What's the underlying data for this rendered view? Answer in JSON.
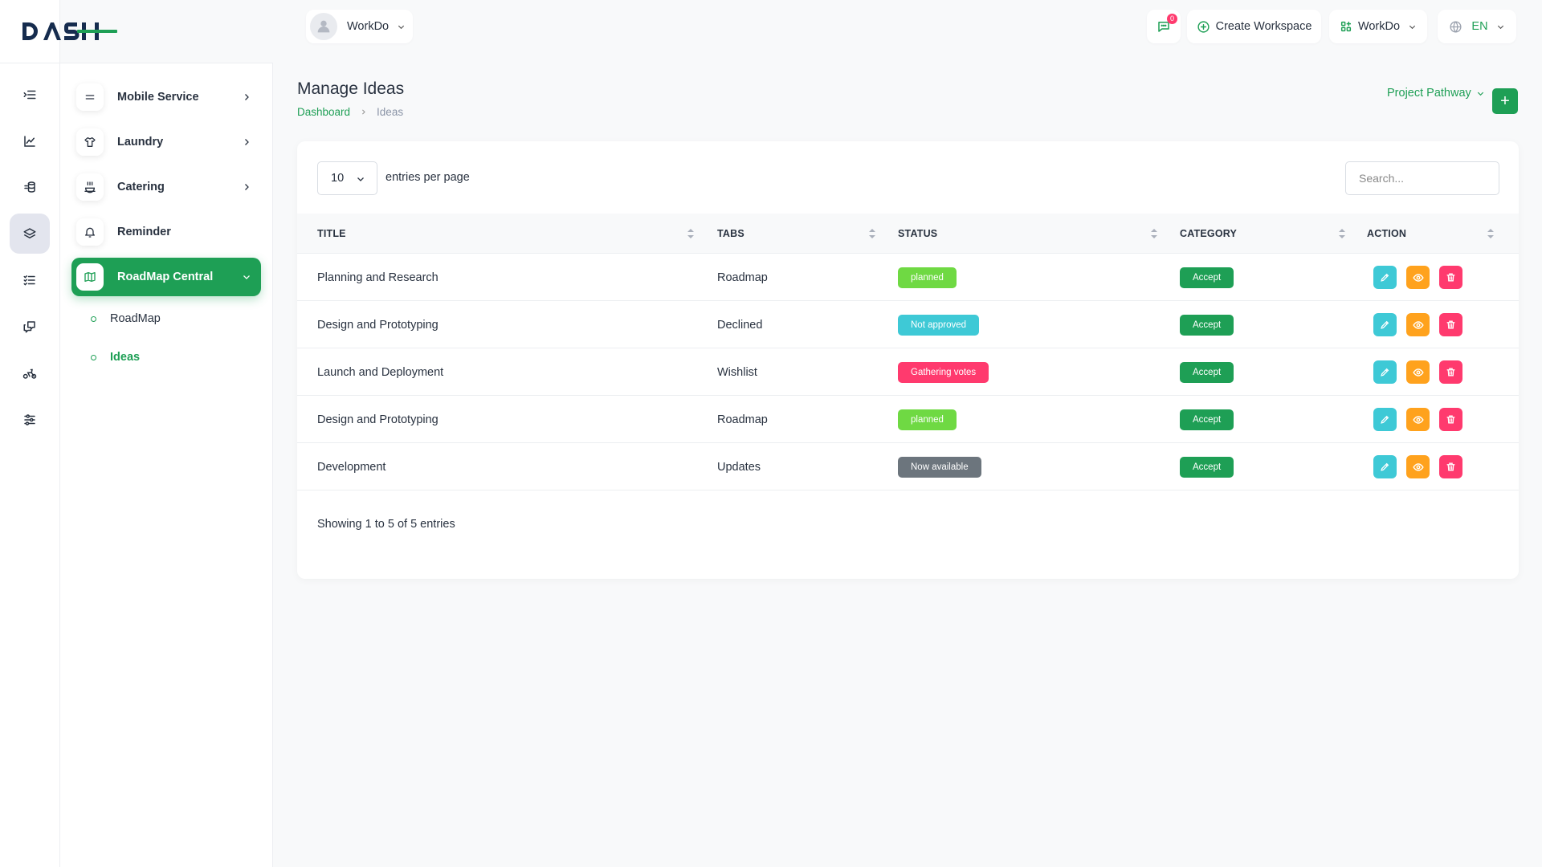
{
  "brand": {
    "logo_text": "DASH"
  },
  "header": {
    "user_name": "WorkDo",
    "message_count": "0",
    "create_workspace": "Create Workspace",
    "workspace_name": "WorkDo",
    "language": "EN"
  },
  "sidebar": {
    "items": [
      {
        "label": "Mobile Service",
        "icon": "mobile-service-icon"
      },
      {
        "label": "Laundry",
        "icon": "shirt-icon"
      },
      {
        "label": "Catering",
        "icon": "catering-icon"
      },
      {
        "label": "Reminder",
        "icon": "bell-icon"
      },
      {
        "label": "RoadMap Central",
        "icon": "map-icon",
        "active": true
      }
    ],
    "subitems": [
      {
        "label": "RoadMap"
      },
      {
        "label": "Ideas",
        "active": true
      }
    ]
  },
  "page": {
    "title": "Manage Ideas",
    "breadcrumb": {
      "home": "Dashboard",
      "current": "Ideas"
    },
    "project_dropdown": "Project Pathway",
    "add_label": "+"
  },
  "table": {
    "per_page_value": "10",
    "per_page_label": "entries per page",
    "search_placeholder": "Search...",
    "columns": [
      "TITLE",
      "TABS",
      "STATUS",
      "CATEGORY",
      "ACTION"
    ],
    "rows": [
      {
        "title": "Planning and Research",
        "tab": "Roadmap",
        "status": "planned",
        "status_color": "#6fd943",
        "category": "Accept"
      },
      {
        "title": "Design and Prototyping",
        "tab": "Declined",
        "status": "Not approved",
        "status_color": "#3ec9d6",
        "category": "Accept"
      },
      {
        "title": "Launch and Deployment",
        "tab": "Wishlist",
        "status": "Gathering votes",
        "status_color": "#ff3a6e",
        "category": "Accept"
      },
      {
        "title": "Design and Prototyping",
        "tab": "Roadmap",
        "status": "planned",
        "status_color": "#6fd943",
        "category": "Accept"
      },
      {
        "title": "Development",
        "tab": "Updates",
        "status": "Now available",
        "status_color": "#6c757d",
        "category": "Accept"
      }
    ],
    "footer": "Showing 1 to 5 of 5 entries"
  },
  "colors": {
    "accent": "#1e9f55",
    "edit": "#3ec9d6",
    "view": "#ffa21d",
    "delete": "#ff3a6e"
  }
}
